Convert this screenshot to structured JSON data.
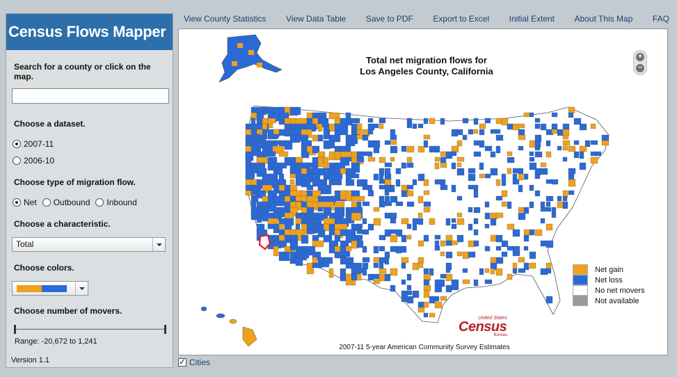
{
  "app": {
    "title": "Census Flows Mapper",
    "version": "Version 1.1"
  },
  "sidebar": {
    "search_label": "Search for a county or click on the map.",
    "search_value": "",
    "dataset_label": "Choose a dataset.",
    "datasets": [
      {
        "label": "2007-11",
        "checked": true
      },
      {
        "label": "2006-10",
        "checked": false
      }
    ],
    "flow_label": "Choose type of migration flow.",
    "flow_types": [
      {
        "label": "Net",
        "checked": true
      },
      {
        "label": "Outbound",
        "checked": false
      },
      {
        "label": "Inbound",
        "checked": false
      }
    ],
    "characteristic_label": "Choose a characteristic.",
    "characteristic_value": "Total",
    "colors_label": "Choose colors.",
    "color_scheme": [
      "#f0a11c",
      "#2a6ad8"
    ],
    "movers_label": "Choose number of movers.",
    "range_text": "Range: -20,672 to 1,241"
  },
  "nav": {
    "items": [
      "View County Statistics",
      "View Data Table",
      "Save to PDF",
      "Export to Excel",
      "Initial Extent",
      "About This Map",
      "FAQ"
    ]
  },
  "map": {
    "title_line1": "Total net migration flows for",
    "title_line2": "Los Angeles County, California",
    "zoom_in": "+",
    "zoom_out": "−",
    "legend": [
      {
        "label": "Net gain",
        "color": "#f0a11c"
      },
      {
        "label": "Net loss",
        "color": "#2a6ad8"
      },
      {
        "label": "No net movers",
        "color": "#ffffff"
      },
      {
        "label": "Not available",
        "color": "#9a9a9a"
      }
    ],
    "logo_top": "United States",
    "logo_main": "Census",
    "logo_bottom": "Bureau",
    "source_note": "2007-11 5-year American Community Survey Estimates"
  },
  "footer": {
    "cities_label": "Cities",
    "cities_checked": true
  }
}
